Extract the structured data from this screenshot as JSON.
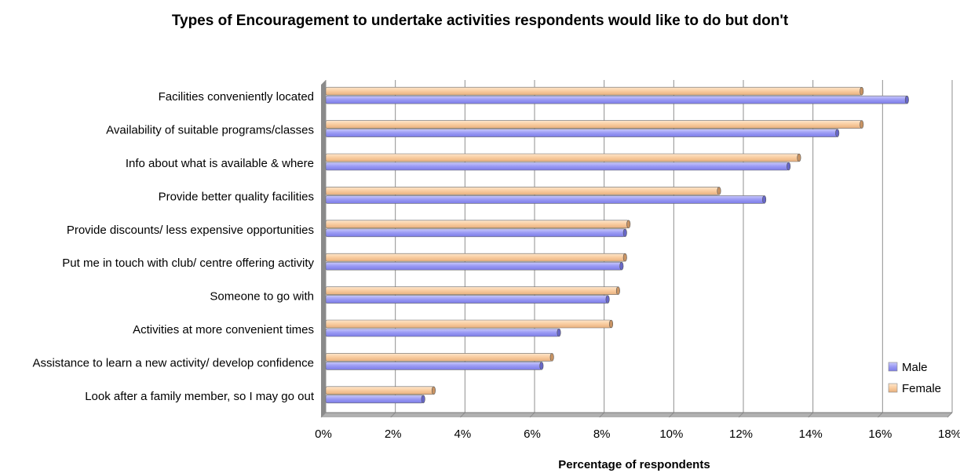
{
  "chart_data": {
    "type": "bar",
    "orientation": "horizontal",
    "title": "Types of Encouragement to undertake activities respondents would like to do but don't",
    "xlabel": "Percentage of respondents",
    "ylabel": "",
    "xlim": [
      0,
      18
    ],
    "x_ticks": [
      "0%",
      "2%",
      "4%",
      "6%",
      "8%",
      "10%",
      "12%",
      "14%",
      "16%",
      "18%"
    ],
    "grid": true,
    "legend_position": "bottom-right",
    "categories": [
      "Facilities conveniently located",
      "Availability of suitable programs/classes",
      "Info about what is available & where",
      "Provide better quality facilities",
      "Provide discounts/ less expensive opportunities",
      "Put me in touch with club/ centre offering activity",
      "Someone to go with",
      "Activities at more convenient times",
      "Assistance to learn a new activity/ develop confidence",
      "Look after a family member, so I may go out"
    ],
    "series": [
      {
        "name": "Male",
        "color": "#9b9bf5",
        "values": [
          16.7,
          14.7,
          13.3,
          12.6,
          8.6,
          8.5,
          8.1,
          6.7,
          6.2,
          2.8
        ]
      },
      {
        "name": "Female",
        "color": "#f9cc9f",
        "values": [
          15.4,
          15.4,
          13.6,
          11.3,
          8.7,
          8.6,
          8.4,
          8.2,
          6.5,
          3.1
        ]
      }
    ]
  }
}
